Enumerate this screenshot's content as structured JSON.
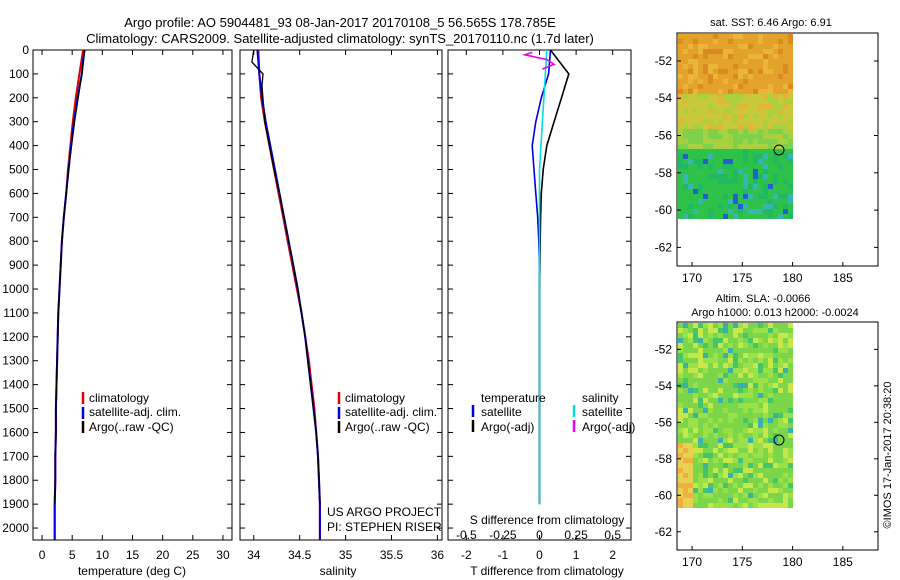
{
  "header": {
    "line1": "Argo profile: AO 5904481_93 08-Jan-2017 20170108_5 56.565S 178.785E",
    "line2": "Climatology: CARS2009. Satellite-adjusted climatology: synTS_20170110.nc (1.7d later)"
  },
  "colors": {
    "climatology": "#dd0000",
    "satellite": "#0000dd",
    "argo": "#000000",
    "salinity_satellite": "#00e0e0",
    "salinity_argo": "#ee00ee"
  },
  "depth_ticks": [
    "0",
    "100",
    "200",
    "300",
    "400",
    "500",
    "600",
    "700",
    "800",
    "900",
    "1000",
    "1100",
    "1200",
    "1300",
    "1400",
    "1500",
    "1600",
    "1700",
    "1800",
    "1900",
    "2000"
  ],
  "panels": {
    "temperature": {
      "xlabel": "temperature (deg C)",
      "ticks": [
        "0",
        "5",
        "10",
        "15",
        "20",
        "25",
        "30"
      ],
      "legend": [
        "climatology",
        "satellite-adj. clim.",
        "Argo(..raw -QC)"
      ]
    },
    "salinity": {
      "xlabel": "salinity",
      "ticks": [
        "34",
        "34.5",
        "35",
        "35.5",
        "36"
      ],
      "legend": [
        "climatology",
        "satellite-adj. clim.",
        "Argo(..raw -QC)"
      ],
      "project": "US ARGO PROJECT",
      "pi": "PI: STEPHEN RISER"
    },
    "difference": {
      "xlabel": "T difference from climatology",
      "s_label": "S difference from climatology",
      "t_ticks": [
        "-2",
        "-1",
        "0",
        "1",
        "2"
      ],
      "s_ticks": [
        "-0.5",
        "-0.25",
        "0",
        "0.25",
        "0.5"
      ],
      "legend_temp_title": "temperature",
      "legend_sal_title": "salinity",
      "legend_temp": [
        "satellite",
        "Argo(-adj)"
      ],
      "legend_sal": [
        "satellite",
        "Argo(-adj)"
      ]
    }
  },
  "maps": {
    "sst": {
      "title": "sat. SST: 6.46 Argo: 6.91",
      "lat_ticks": [
        "-52",
        "-54",
        "-56",
        "-58",
        "-60",
        "-62"
      ],
      "lon_ticks": [
        "170",
        "175",
        "180",
        "185"
      ]
    },
    "sla": {
      "title1": "Altim. SLA: -0.0066",
      "title2": "Argo h1000: 0.013 h2000: -0.0024",
      "lat_ticks": [
        "-52",
        "-54",
        "-56",
        "-58",
        "-60",
        "-62"
      ],
      "lon_ticks": [
        "170",
        "175",
        "180",
        "185"
      ]
    },
    "float_position": {
      "lat": -56.565,
      "lon": 178.785
    }
  },
  "credit": "©IMOS 17-Jan-2017 20:38:20",
  "chart_data": [
    {
      "type": "line",
      "name": "temperature profile",
      "xlabel": "temperature (deg C)",
      "ylabel": "",
      "xlim": [
        -1.5,
        31.5
      ],
      "ylim": [
        2050,
        0
      ],
      "series": [
        {
          "name": "climatology",
          "color": "#dd0000",
          "x": [
            6.8,
            6.2,
            5.6,
            5.1,
            4.7,
            4.3,
            4.0,
            3.6,
            3.3,
            3.1,
            2.9,
            2.7,
            2.6,
            2.5,
            2.4,
            2.3,
            2.3,
            2.2,
            2.2,
            2.1,
            2.1
          ],
          "y": [
            0,
            100,
            200,
            300,
            400,
            500,
            600,
            700,
            800,
            900,
            1000,
            1100,
            1200,
            1300,
            1400,
            1500,
            1600,
            1700,
            1800,
            1900,
            2050
          ]
        },
        {
          "name": "satellite-adj. clim.",
          "color": "#0000dd",
          "x": [
            7.0,
            6.6,
            5.9,
            5.3,
            4.8,
            4.4,
            4.0,
            3.6,
            3.3,
            3.1,
            2.9,
            2.7,
            2.6,
            2.5,
            2.4,
            2.3,
            2.3,
            2.2,
            2.2,
            2.1,
            2.1
          ],
          "y": [
            0,
            100,
            200,
            300,
            400,
            500,
            600,
            700,
            800,
            900,
            1000,
            1100,
            1200,
            1300,
            1400,
            1500,
            1600,
            1700,
            1800,
            1900,
            2050
          ]
        },
        {
          "name": "Argo(..raw -QC)",
          "color": "#000000",
          "x": [
            7.1,
            6.6,
            6.0,
            5.4,
            4.9,
            4.4,
            4.0,
            3.6,
            3.3,
            3.1,
            2.9,
            2.7,
            2.6,
            2.5,
            2.4,
            2.3,
            2.3,
            2.2,
            2.2,
            2.1
          ],
          "y": [
            0,
            100,
            200,
            300,
            400,
            500,
            600,
            700,
            800,
            900,
            1000,
            1100,
            1200,
            1300,
            1400,
            1500,
            1600,
            1700,
            1800,
            1900
          ]
        }
      ]
    },
    {
      "type": "line",
      "name": "salinity profile",
      "xlabel": "salinity",
      "xlim": [
        33.85,
        36.05
      ],
      "ylim": [
        2050,
        0
      ],
      "series": [
        {
          "name": "climatology",
          "color": "#dd0000",
          "x": [
            34.05,
            34.06,
            34.08,
            34.12,
            34.17,
            34.22,
            34.27,
            34.32,
            34.37,
            34.42,
            34.47,
            34.52,
            34.56,
            34.6,
            34.63,
            34.66,
            34.68,
            34.7,
            34.71,
            34.72,
            34.72
          ],
          "y": [
            0,
            100,
            200,
            300,
            400,
            500,
            600,
            700,
            800,
            900,
            1000,
            1100,
            1200,
            1300,
            1400,
            1500,
            1600,
            1700,
            1800,
            1900,
            2050
          ]
        },
        {
          "name": "satellite-adj. clim.",
          "color": "#0000dd",
          "x": [
            34.04,
            34.06,
            34.09,
            34.13,
            34.18,
            34.23,
            34.28,
            34.33,
            34.38,
            34.43,
            34.48,
            34.52,
            34.56,
            34.59,
            34.62,
            34.65,
            34.68,
            34.7,
            34.71,
            34.72,
            34.72
          ],
          "y": [
            0,
            100,
            200,
            300,
            400,
            500,
            600,
            700,
            800,
            900,
            1000,
            1100,
            1200,
            1300,
            1400,
            1500,
            1600,
            1700,
            1800,
            1900,
            2050
          ]
        },
        {
          "name": "Argo(..raw -QC)",
          "color": "#000000",
          "x": [
            34.0,
            33.98,
            34.1,
            34.09,
            34.12,
            34.17,
            34.22,
            34.28,
            34.33,
            34.38,
            34.43,
            34.48,
            34.52,
            34.56,
            34.59,
            34.62,
            34.65,
            34.68,
            34.7,
            34.71,
            34.72
          ],
          "y": [
            0,
            50,
            100,
            150,
            300,
            400,
            500,
            600,
            700,
            800,
            900,
            1000,
            1100,
            1200,
            1300,
            1400,
            1500,
            1600,
            1700,
            1800,
            1900
          ]
        }
      ]
    },
    {
      "type": "line",
      "name": "difference from climatology",
      "xlabel": "T difference from climatology",
      "x2label": "S difference from climatology",
      "xlim": [
        -2.5,
        2.5
      ],
      "ylim": [
        2050,
        0
      ],
      "series": [
        {
          "name": "temperature satellite",
          "color": "#0000dd",
          "x": [
            0.3,
            0.25,
            0.05,
            -0.1,
            -0.2,
            -0.15,
            -0.1,
            -0.05,
            -0.02,
            0.0,
            0.0,
            0.0,
            0.0,
            0.0,
            0.0,
            0.0,
            0.0,
            0.0,
            0.0,
            0.0
          ],
          "y": [
            0,
            100,
            200,
            300,
            400,
            500,
            600,
            700,
            800,
            900,
            1000,
            1100,
            1200,
            1300,
            1400,
            1500,
            1600,
            1700,
            1800,
            1900
          ]
        },
        {
          "name": "temperature Argo(-adj)",
          "color": "#000000",
          "x": [
            0.3,
            0.8,
            0.6,
            0.4,
            0.2,
            0.1,
            0.05,
            0.03,
            0.02,
            0.01,
            0.0,
            0.0,
            0.0,
            0.0,
            0.0,
            0.0,
            0.0,
            0.0,
            0.0,
            0.0
          ],
          "y": [
            0,
            100,
            200,
            300,
            400,
            500,
            600,
            700,
            800,
            900,
            1000,
            1100,
            1200,
            1300,
            1400,
            1500,
            1600,
            1700,
            1800,
            1900
          ]
        },
        {
          "name": "salinity satellite",
          "color": "#00e0e0",
          "x": [
            0.05,
            0.04,
            0.03,
            0.02,
            0.01,
            0.0,
            0.0,
            0.0,
            0.0,
            0.0,
            0.0,
            0.0,
            0.0,
            0.0,
            0.0,
            0.0,
            0.0,
            0.0,
            0.0,
            0.0
          ],
          "y": [
            0,
            100,
            200,
            300,
            400,
            500,
            600,
            700,
            800,
            900,
            1000,
            1100,
            1200,
            1300,
            1400,
            1500,
            1600,
            1700,
            1800,
            1900
          ]
        },
        {
          "name": "salinity Argo(-adj)",
          "color": "#ee00ee",
          "x": [
            -0.05,
            -0.1,
            0.05,
            0.1,
            0.02
          ],
          "y": [
            10,
            20,
            40,
            60,
            80
          ]
        }
      ]
    }
  ]
}
